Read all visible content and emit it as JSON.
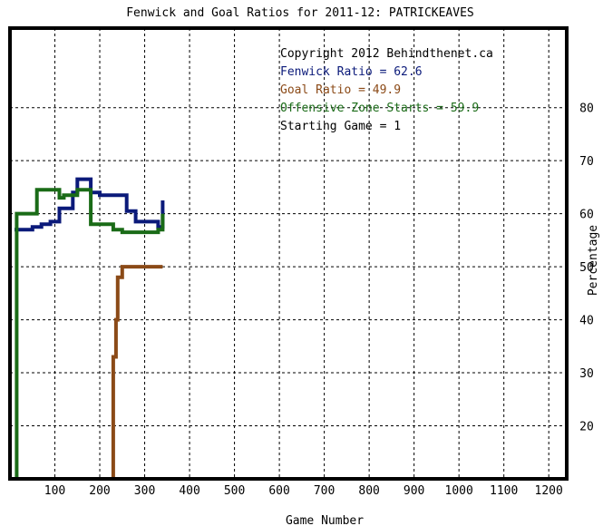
{
  "chart_data": {
    "type": "line",
    "title": "Fenwick and Goal Ratios for 2011-12: PATRICKEAVES",
    "xlabel": "Game Number",
    "ylabel": "Percentage",
    "xlim": [
      0,
      1240
    ],
    "ylim": [
      10,
      95
    ],
    "x_ticks": [
      100,
      200,
      300,
      400,
      500,
      600,
      700,
      800,
      900,
      1000,
      1100,
      1200
    ],
    "y_ticks": [
      20,
      30,
      40,
      50,
      60,
      70,
      80
    ],
    "grid": true,
    "annotations": [
      {
        "text": "Copyright 2012 Behindthenet.ca",
        "color": "#000000"
      },
      {
        "text": "Fenwick Ratio = 62.6",
        "color": "#0b1a7a"
      },
      {
        "text": "Goal Ratio = 49.9",
        "color": "#8b4a17"
      },
      {
        "text": "Offensive Zone Starts = 59.9",
        "color": "#1a6b17"
      },
      {
        "text": "Starting Game = 1",
        "color": "#000000"
      }
    ],
    "series": [
      {
        "name": "Fenwick Ratio",
        "color": "#0b1a7a",
        "x": [
          10,
          50,
          50,
          70,
          70,
          90,
          90,
          110,
          110,
          140,
          140,
          150,
          150,
          180,
          180,
          200,
          200,
          230,
          230,
          260,
          260,
          280,
          280,
          300,
          300,
          330,
          330,
          340,
          340
        ],
        "y": [
          57,
          57,
          57.5,
          57.5,
          58,
          58,
          58.5,
          58.5,
          61,
          61,
          64,
          64,
          66.5,
          66.5,
          64,
          64,
          63.5,
          63.5,
          63.5,
          63.5,
          60.5,
          60.5,
          58.5,
          58.5,
          58.5,
          58.5,
          57.5,
          57.5,
          62.5
        ]
      },
      {
        "name": "Goal Ratio",
        "color": "#8b4a17",
        "x": [
          228,
          230,
          230,
          236,
          236,
          240,
          240,
          240,
          240,
          250,
          250,
          340
        ],
        "y": [
          10,
          10,
          33,
          33,
          40,
          40,
          43,
          46,
          48,
          48,
          50,
          50
        ]
      },
      {
        "name": "Offensive Zone Starts",
        "color": "#1a6b17",
        "x": [
          15,
          15,
          20,
          20,
          60,
          60,
          110,
          110,
          120,
          120,
          150,
          150,
          180,
          180,
          230,
          230,
          250,
          250,
          330,
          330,
          340,
          340
        ],
        "y": [
          10,
          60,
          60,
          60,
          60,
          64.5,
          64.5,
          63,
          63,
          63.5,
          63.5,
          64.5,
          64.5,
          58,
          58,
          57,
          57,
          56.5,
          56.5,
          57,
          57,
          60
        ]
      }
    ]
  }
}
